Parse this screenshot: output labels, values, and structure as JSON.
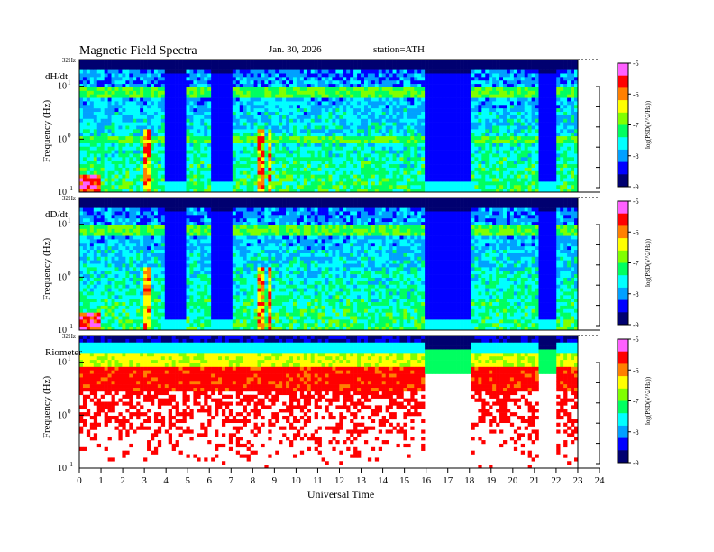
{
  "header": {
    "title": "Magnetic  Field  Spectra",
    "date": "Jan. 30, 2026",
    "station": "station=ATH"
  },
  "chart_data": {
    "type": "heatmap",
    "x_axis": {
      "label": "Universal Time",
      "range": [
        0,
        24
      ],
      "ticks": [
        "0",
        "1",
        "2",
        "3",
        "4",
        "5",
        "6",
        "7",
        "8",
        "9",
        "10",
        "11",
        "12",
        "13",
        "14",
        "15",
        "16",
        "17",
        "18",
        "19",
        "20",
        "21",
        "22",
        "23",
        "24"
      ]
    },
    "y_axis": {
      "label": "Frequency  (Hz)",
      "scale": "log",
      "range": [
        0.1,
        32
      ],
      "top_label": "32Hz",
      "tick_bases": [
        "10",
        "10",
        "10"
      ],
      "tick_exps": [
        "-1",
        "0",
        "1"
      ]
    },
    "colorbar": {
      "label": "log(PSD(V^2/Hz))",
      "range": [
        -9,
        -5
      ],
      "ticks": [
        "-5",
        "-6",
        "-7",
        "-8",
        "-9"
      ],
      "colors": [
        "#000070",
        "#0000ff",
        "#00a0ff",
        "#00ffff",
        "#00ff60",
        "#80ff00",
        "#ffff00",
        "#ff8000",
        "#ff0000",
        "#ff60ff"
      ]
    },
    "panels": [
      {
        "name": "dH/dt",
        "type": "magnetometer",
        "gaps": [
          [
            4.0,
            5.0
          ],
          [
            6.0,
            7.0
          ],
          [
            16.0,
            18.0
          ],
          [
            21.2,
            22.0
          ]
        ],
        "line_freqs": [
          8.0,
          1.0
        ],
        "bursts": [
          3.1,
          8.4,
          8.8
        ]
      },
      {
        "name": "dD/dt",
        "type": "magnetometer",
        "gaps": [
          [
            4.0,
            5.0
          ],
          [
            6.0,
            7.0
          ],
          [
            16.0,
            18.0
          ],
          [
            21.2,
            22.0
          ]
        ],
        "line_freqs": [
          8.0
        ],
        "bursts": [
          3.1,
          8.4,
          8.8
        ]
      },
      {
        "name": "Riometer",
        "type": "riometer",
        "gaps": [
          [
            16.0,
            18.0
          ],
          [
            21.2,
            22.0
          ]
        ],
        "line_freqs": [],
        "bursts": []
      }
    ]
  }
}
